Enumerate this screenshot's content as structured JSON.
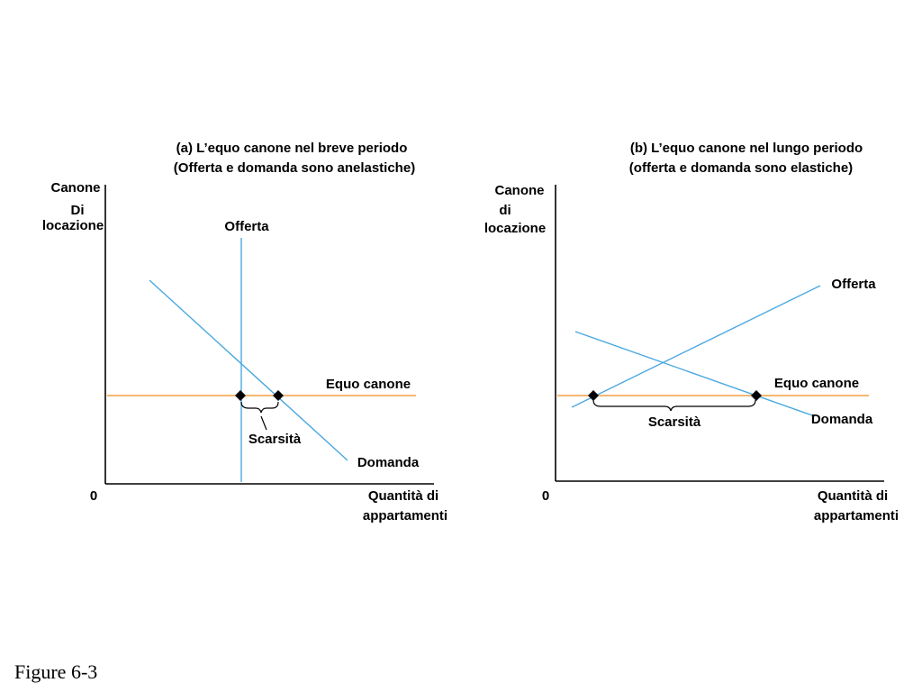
{
  "colors": {
    "supply_demand_line": "#4aa8e0",
    "fair_rent_line": "#f0a040",
    "axis": "#000000",
    "marker": "#000000"
  },
  "panel_a": {
    "title_line1": "(a) L’equo canone nel breve periodo",
    "title_line2": "(Offerta e domanda sono anelastiche)",
    "y_label_line1": "Canone",
    "y_label_line2": "Di",
    "y_label_line3": "locazione",
    "x_label_line1": "Quantità di",
    "x_label_line2": "appartamenti",
    "origin_label": "0",
    "supply_label": "Offerta",
    "demand_label": "Domanda",
    "fair_rent_label": "Equo canone",
    "shortage_label": "Scarsità"
  },
  "panel_b": {
    "title_line1": "(b) L’equo canone nel lungo periodo",
    "title_line2": "(offerta e domanda sono elastiche)",
    "y_label_line1": "Canone",
    "y_label_line2": "di",
    "y_label_line3": "locazione",
    "x_label_line1": "Quantità di",
    "x_label_line2": "appartamenti",
    "origin_label": "0",
    "supply_label": "Offerta",
    "demand_label": "Domanda",
    "fair_rent_label": "Equo canone",
    "shortage_label": "Scarsità"
  },
  "figure_caption": "Figure 6-3"
}
